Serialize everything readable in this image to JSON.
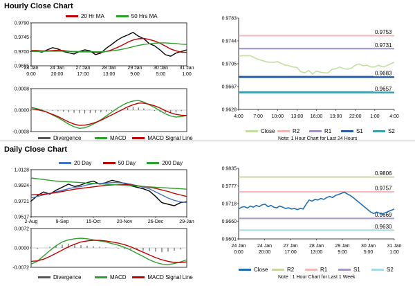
{
  "titles": {
    "hourly": "Hourly Close Chart",
    "daily": "Daily Close Chart"
  },
  "legends": {
    "hourly_price": [
      {
        "label": "20 Hr MA",
        "color": "#c00000"
      },
      {
        "label": "50 Hrs MA",
        "color": "#2ca02c"
      }
    ],
    "daily_price": [
      {
        "label": "20 Day",
        "color": "#4472c4"
      },
      {
        "label": "50 Day",
        "color": "#c00000"
      },
      {
        "label": "200 Day",
        "color": "#2ca02c"
      }
    ],
    "macd": [
      {
        "label": "Divergence",
        "color": "#555555"
      },
      {
        "label": "MACD",
        "color": "#2ca02c"
      },
      {
        "label": "MACD Signal Line",
        "color": "#c00000"
      }
    ],
    "pivot_hourly": [
      {
        "label": "Close",
        "color": "#c5dea0"
      },
      {
        "label": "R2",
        "color": "#f4b4b4"
      },
      {
        "label": "R1",
        "color": "#9b8fbf"
      },
      {
        "label": "S1",
        "color": "#2a5d9f"
      },
      {
        "label": "S2",
        "color": "#3aa0b0"
      }
    ],
    "pivot_daily": [
      {
        "label": "Close",
        "color": "#1f6eb4"
      },
      {
        "label": "R2",
        "color": "#c8d6a0"
      },
      {
        "label": "R1",
        "color": "#f2b8b8"
      },
      {
        "label": "S1",
        "color": "#a597c7"
      },
      {
        "label": "S2",
        "color": "#a7d8e6"
      }
    ]
  },
  "notes": {
    "hourly": "Note: 1 Hour Chart for Last 24 Hours",
    "daily": "Note : 1 Hour Chart for Last 1 Week"
  },
  "chart_data": [
    {
      "id": "hourly_price",
      "type": "line",
      "yticks": [
        "0.9790",
        "0.9745",
        "0.9700",
        "0.9655"
      ],
      "ylim": [
        0.9655,
        0.979
      ],
      "xticks": [
        "24 Jan\n0:00",
        "24 Jan\n20:00",
        "27 Jan\n17:00",
        "28 Jan\n13:00",
        "29 Jan\n9:00",
        "30 Jan\n5:00",
        "31 Jan\n1:00"
      ],
      "series": [
        {
          "name": "Close",
          "color": "#000000",
          "values": [
            0.97,
            0.9702,
            0.9698,
            0.9705,
            0.9712,
            0.9708,
            0.97,
            0.9696,
            0.9692,
            0.97,
            0.9705,
            0.9702,
            0.969,
            0.9695,
            0.971,
            0.9722,
            0.9735,
            0.9745,
            0.9752,
            0.976,
            0.9748,
            0.974,
            0.9725,
            0.9718,
            0.9705,
            0.969,
            0.9685,
            0.9695,
            0.97,
            0.9705
          ]
        },
        {
          "name": "20 Hr MA",
          "color": "#c00000",
          "values": [
            0.9703,
            0.9703,
            0.9702,
            0.9702,
            0.9703,
            0.9704,
            0.9703,
            0.9701,
            0.9699,
            0.9699,
            0.9699,
            0.9699,
            0.9697,
            0.9697,
            0.97,
            0.9705,
            0.9712,
            0.972,
            0.9729,
            0.9736,
            0.974,
            0.9741,
            0.9738,
            0.9733,
            0.9726,
            0.9717,
            0.9708,
            0.9702,
            0.9698,
            0.9697
          ]
        },
        {
          "name": "50 Hrs MA",
          "color": "#2ca02c",
          "values": [
            0.97,
            0.97,
            0.97,
            0.9701,
            0.9701,
            0.9701,
            0.9701,
            0.97,
            0.97,
            0.97,
            0.97,
            0.97,
            0.9699,
            0.9699,
            0.97,
            0.9702,
            0.9704,
            0.9707,
            0.9711,
            0.9715,
            0.9719,
            0.9722,
            0.9724,
            0.9726,
            0.9727,
            0.9727,
            0.9726,
            0.9725,
            0.9723,
            0.9722
          ]
        }
      ]
    },
    {
      "id": "hourly_macd",
      "type": "line",
      "yticks": [
        "0.0008",
        "0.0000",
        "-0.0008"
      ],
      "ylim": [
        -0.0008,
        0.0008
      ],
      "series": [
        {
          "name": "Divergence",
          "type": "bar",
          "values": [
            5e-05,
            4e-05,
            3e-05,
            1e-05,
            -2e-05,
            -4e-05,
            -6e-05,
            -8e-05,
            -0.0001,
            -0.00011,
            -0.00012,
            -0.00011,
            -0.0001,
            -8e-05,
            -6e-05,
            -3e-05,
            1e-05,
            4e-05,
            8e-05,
            0.00012,
            0.0001,
            6e-05,
            2e-05,
            -3e-05,
            -7e-05,
            -0.0001,
            -0.00012,
            -8e-05,
            -4e-05,
            1e-05
          ]
        },
        {
          "name": "MACD",
          "color": "#2ca02c",
          "values": [
            0.0001,
            6e-05,
            0.0,
            -8e-05,
            -0.00018,
            -0.00028,
            -0.0004,
            -0.00052,
            -0.00062,
            -0.00068,
            -0.00066,
            -0.00058,
            -0.00048,
            -0.00036,
            -0.00022,
            -8e-05,
            6e-05,
            0.00018,
            0.00028,
            0.00034,
            0.00036,
            0.0003,
            0.0002,
            0.0001,
            -2e-05,
            -0.00014,
            -0.00022,
            -0.00026,
            -0.00024,
            -0.0002
          ]
        },
        {
          "name": "MACD Signal Line",
          "color": "#c00000",
          "values": [
            5e-05,
            2e-05,
            -2e-05,
            -8e-05,
            -0.00016,
            -0.00024,
            -0.00034,
            -0.00044,
            -0.00052,
            -0.00057,
            -0.00056,
            -0.00052,
            -0.00046,
            -0.00038,
            -0.00028,
            -0.00018,
            -8e-05,
            2e-05,
            0.00012,
            0.0002,
            0.00026,
            0.00026,
            0.00022,
            0.00016,
            8e-05,
            -2e-05,
            -0.0001,
            -0.00016,
            -0.00019,
            -0.0002
          ]
        }
      ]
    },
    {
      "id": "hourly_pivot",
      "type": "line",
      "yticks": [
        "0.9783",
        "0.9744",
        "0.9705",
        "0.9667",
        "0.9628"
      ],
      "ylim": [
        0.9628,
        0.9783
      ],
      "xticks": [
        "4:00",
        "7:00",
        "10:00",
        "13:00",
        "16:00",
        "19:00",
        "22:00",
        "1:00",
        "4:00"
      ],
      "hlines": [
        {
          "name": "R2",
          "value": 0.9753,
          "label": "0.9753",
          "color": "#f4b4b4"
        },
        {
          "name": "R1",
          "value": 0.9731,
          "label": "0.9731",
          "color": "#9b8fbf"
        },
        {
          "name": "S1",
          "value": 0.9683,
          "label": "0.9683",
          "color": "#2a5d9f"
        },
        {
          "name": "S2",
          "value": 0.9657,
          "label": "0.9657",
          "color": "#3aa0b0"
        }
      ],
      "series": [
        {
          "name": "Close",
          "color": "#c5dea0",
          "values": [
            0.9718,
            0.9719,
            0.9719,
            0.9719,
            0.9716,
            0.9713,
            0.9711,
            0.9709,
            0.9708,
            0.9708,
            0.9709,
            0.9706,
            0.9703,
            0.9702,
            0.97,
            0.9699,
            0.9692,
            0.969,
            0.9694,
            0.9688,
            0.9693,
            0.9691,
            0.969,
            0.969,
            0.9696,
            0.9697,
            0.97,
            0.9697,
            0.9696,
            0.9698,
            0.9703,
            0.9705,
            0.9702,
            0.9703,
            0.97,
            0.97,
            0.9703,
            0.97,
            0.9702,
            0.9705,
            0.9708
          ]
        }
      ]
    },
    {
      "id": "daily_price",
      "type": "line",
      "yticks": [
        "1.0128",
        "0.9924",
        "0.9721",
        "0.9517"
      ],
      "ylim": [
        0.9517,
        1.0128
      ],
      "xticks": [
        "2-Aug",
        "9-Sep",
        "15-Oct",
        "20-Nov",
        "26-Dec",
        "29-Jan"
      ],
      "series": [
        {
          "name": "Close",
          "color": "#000000",
          "values": [
            0.972,
            0.979,
            0.984,
            0.981,
            0.986,
            0.99,
            0.994,
            0.991,
            0.993,
            0.996,
            0.998,
            0.994,
            0.996,
            0.999,
            0.997,
            0.995,
            0.992,
            0.99,
            0.988,
            0.985,
            0.978,
            0.97,
            0.968,
            0.966,
            0.97,
            0.971
          ]
        },
        {
          "name": "20 Day",
          "color": "#4472c4",
          "values": [
            0.976,
            0.978,
            0.98,
            0.982,
            0.984,
            0.986,
            0.988,
            0.99,
            0.991,
            0.993,
            0.9945,
            0.995,
            0.9955,
            0.996,
            0.996,
            0.9955,
            0.994,
            0.992,
            0.99,
            0.988,
            0.984,
            0.98,
            0.976,
            0.973,
            0.971,
            0.97
          ]
        },
        {
          "name": "50 Day",
          "color": "#c00000",
          "values": [
            0.98,
            0.9805,
            0.981,
            0.982,
            0.983,
            0.9845,
            0.986,
            0.9875,
            0.9885,
            0.9895,
            0.9905,
            0.9915,
            0.9925,
            0.993,
            0.9935,
            0.9935,
            0.993,
            0.992,
            0.991,
            0.99,
            0.9885,
            0.9865,
            0.9845,
            0.982,
            0.98,
            0.978
          ]
        },
        {
          "name": "200 Day",
          "color": "#2ca02c",
          "values": [
            1.002,
            1.001,
            1.0,
            0.999,
            0.998,
            0.9975,
            0.997,
            0.9965,
            0.996,
            0.9955,
            0.995,
            0.9945,
            0.994,
            0.9935,
            0.993,
            0.9925,
            0.992,
            0.9915,
            0.991,
            0.9905,
            0.99,
            0.9895,
            0.989,
            0.9885,
            0.988,
            0.9875
          ]
        }
      ]
    },
    {
      "id": "daily_macd",
      "type": "line",
      "yticks": [
        "0.0072",
        "0.0000",
        "-0.0072"
      ],
      "ylim": [
        -0.0072,
        0.0072
      ],
      "series": [
        {
          "name": "Divergence",
          "type": "bar",
          "values": [
            -0.0008,
            -0.0004,
            0.0,
            0.0004,
            0.0008,
            0.0012,
            0.0016,
            0.0014,
            0.001,
            0.0008,
            0.0006,
            0.0004,
            0.0002,
            0.0,
            -0.0002,
            -0.0004,
            -0.0006,
            -0.0008,
            -0.001,
            -0.0012,
            -0.0014,
            -0.0016,
            -0.0014,
            -0.001,
            -0.0006,
            -0.0002
          ]
        },
        {
          "name": "MACD",
          "color": "#2ca02c",
          "values": [
            -0.006,
            -0.005,
            -0.003,
            -0.001,
            0.0008,
            0.0022,
            0.003,
            0.0034,
            0.0036,
            0.0034,
            0.003,
            0.0026,
            0.0022,
            0.0016,
            0.001,
            0.0002,
            -0.0008,
            -0.002,
            -0.0032,
            -0.0044,
            -0.0054,
            -0.006,
            -0.0062,
            -0.0058,
            -0.0052,
            -0.0044
          ]
        },
        {
          "name": "MACD Signal Line",
          "color": "#c00000",
          "values": [
            -0.005,
            -0.0048,
            -0.0042,
            -0.0032,
            -0.002,
            -0.0008,
            0.0004,
            0.0014,
            0.0022,
            0.0026,
            0.0028,
            0.0028,
            0.0026,
            0.0022,
            0.0018,
            0.0012,
            0.0004,
            -0.0006,
            -0.0016,
            -0.0026,
            -0.0036,
            -0.0044,
            -0.005,
            -0.0054,
            -0.0054,
            -0.0052
          ]
        }
      ]
    },
    {
      "id": "daily_pivot",
      "type": "line",
      "yticks": [
        "0.9835",
        "0.9777",
        "0.9718",
        "0.9660",
        "0.9601"
      ],
      "ylim": [
        0.9601,
        0.9835
      ],
      "xticks": [
        "24 Jan\n0:00",
        "24 Jan\n20:00",
        "27 Jan\n17:00",
        "28 Jan\n13:00",
        "29 Jan\n9:00",
        "30 Jan\n5:00",
        "31 Jan\n1:00"
      ],
      "hlines": [
        {
          "name": "R2",
          "value": 0.9806,
          "label": "0.9806",
          "color": "#c8d6a0"
        },
        {
          "name": "R1",
          "value": 0.9757,
          "label": "0.9757",
          "color": "#f2b8b8"
        },
        {
          "name": "S1",
          "value": 0.9669,
          "label": "0.9669",
          "color": "#a597c7"
        },
        {
          "name": "S2",
          "value": 0.963,
          "label": "0.9630",
          "color": "#a7d8e6"
        }
      ],
      "series": [
        {
          "name": "Close",
          "color": "#1f6eb4",
          "values": [
            0.97,
            0.9706,
            0.9708,
            0.9703,
            0.971,
            0.9706,
            0.9712,
            0.9708,
            0.9714,
            0.9716,
            0.9708,
            0.9712,
            0.9706,
            0.9704,
            0.971,
            0.9706,
            0.9702,
            0.9704,
            0.97,
            0.9702,
            0.9698,
            0.9702,
            0.97,
            0.9716,
            0.973,
            0.9726,
            0.9732,
            0.973,
            0.9735,
            0.9732,
            0.9738,
            0.9742,
            0.9738,
            0.9745,
            0.9748,
            0.9752,
            0.9756,
            0.975,
            0.9745,
            0.9738,
            0.973,
            0.9722,
            0.9714,
            0.9706,
            0.9698,
            0.969,
            0.9685,
            0.969,
            0.9686,
            0.9684,
            0.9688,
            0.9692,
            0.9696,
            0.97
          ]
        }
      ]
    }
  ]
}
